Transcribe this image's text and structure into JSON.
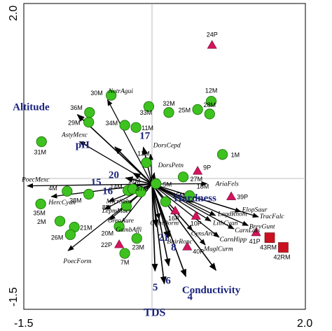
{
  "chart_data": {
    "type": "scatter",
    "title": "",
    "xlabel": "",
    "ylabel": "",
    "xlim": [
      -1.5,
      2.0
    ],
    "ylim": [
      -1.5,
      2.0
    ],
    "x_ticks": [
      "-1.5",
      "2.0"
    ],
    "y_ticks": [
      "2.0",
      "-1.5"
    ],
    "grid": false,
    "reference_lines": [
      0,
      0
    ],
    "marker_colors": {
      "M": "#3ec21f",
      "P": "#d6135e",
      "RM": "#cc1020"
    },
    "sites": [
      {
        "label": "1M",
        "x": 0.88,
        "y": 0.32,
        "marker": "circle"
      },
      {
        "label": "2M",
        "x": -1.15,
        "y": -0.57,
        "marker": "circle"
      },
      {
        "label": "4M",
        "x": -1.06,
        "y": -0.17,
        "marker": "circle"
      },
      {
        "label": "5M",
        "x": 0.05,
        "y": -0.07,
        "marker": "circle"
      },
      {
        "label": "7M",
        "x": -0.34,
        "y": -1.0,
        "marker": "circle"
      },
      {
        "label": "8M",
        "x": -0.32,
        "y": -0.37,
        "marker": "circle"
      },
      {
        "label": "9P",
        "x": 0.57,
        "y": 0.1,
        "marker": "triangle"
      },
      {
        "label": "10P",
        "x": 0.55,
        "y": -0.5,
        "marker": "triangle"
      },
      {
        "label": "11M",
        "x": -0.2,
        "y": 0.68,
        "marker": "circle"
      },
      {
        "label": "12M",
        "x": 0.74,
        "y": 1.03,
        "marker": "circle"
      },
      {
        "label": "13M",
        "x": -0.07,
        "y": 0.21,
        "marker": "circle"
      },
      {
        "label": "14M",
        "x": -0.3,
        "y": -0.16,
        "marker": "circle"
      },
      {
        "label": "15M",
        "x": 0.17,
        "y": -0.31,
        "marker": "circle"
      },
      {
        "label": "16P",
        "x": 0.29,
        "y": -0.43,
        "marker": "triangle"
      },
      {
        "label": "17M",
        "x": -0.24,
        "y": -0.14,
        "marker": "circle"
      },
      {
        "label": "18M",
        "x": 0.47,
        "y": -0.23,
        "marker": "circle"
      },
      {
        "label": "20M",
        "x": -0.41,
        "y": -0.64,
        "marker": "circle"
      },
      {
        "label": "21M",
        "x": -0.97,
        "y": -0.65,
        "marker": "circle"
      },
      {
        "label": "22P",
        "x": -0.41,
        "y": -0.88,
        "marker": "triangle"
      },
      {
        "label": "23M",
        "x": -0.19,
        "y": -0.8,
        "marker": "circle"
      },
      {
        "label": "24P",
        "x": 0.75,
        "y": 1.78,
        "marker": "triangle"
      },
      {
        "label": "25M",
        "x": 0.57,
        "y": 0.92,
        "marker": "circle"
      },
      {
        "label": "26M",
        "x": -1.02,
        "y": -0.75,
        "marker": "circle"
      },
      {
        "label": "27M",
        "x": 0.39,
        "y": 0.02,
        "marker": "circle"
      },
      {
        "label": "28M",
        "x": 0.72,
        "y": 0.86,
        "marker": "circle"
      },
      {
        "label": "29M",
        "x": -0.79,
        "y": 0.75,
        "marker": "circle"
      },
      {
        "label": "30M",
        "x": -0.51,
        "y": 1.11,
        "marker": "circle"
      },
      {
        "label": "31M",
        "x": -1.38,
        "y": 0.49,
        "marker": "circle"
      },
      {
        "label": "32M",
        "x": 0.21,
        "y": 0.88,
        "marker": "circle"
      },
      {
        "label": "33M",
        "x": -0.04,
        "y": 0.96,
        "marker": "circle"
      },
      {
        "label": "34M",
        "x": -0.34,
        "y": 0.71,
        "marker": "circle"
      },
      {
        "label": "35M",
        "x": -1.39,
        "y": -0.34,
        "marker": "circle"
      },
      {
        "label": "36M",
        "x": -0.78,
        "y": 0.88,
        "marker": "circle"
      },
      {
        "label": "37M",
        "x": -0.14,
        "y": -0.18,
        "marker": "circle"
      },
      {
        "label": "38M",
        "x": -0.79,
        "y": -0.21,
        "marker": "circle"
      },
      {
        "label": "39P",
        "x": 0.99,
        "y": -0.24,
        "marker": "triangle"
      },
      {
        "label": "40P",
        "x": 0.44,
        "y": -0.91,
        "marker": "triangle"
      },
      {
        "label": "41P",
        "x": 1.3,
        "y": -0.72,
        "marker": "triangle"
      },
      {
        "label": "42RM",
        "x": 1.64,
        "y": -0.92,
        "marker": "square"
      },
      {
        "label": "43RM",
        "x": 1.47,
        "y": -0.79,
        "marker": "square"
      }
    ],
    "species": [
      {
        "label": "NotrAgui",
        "x": -0.58,
        "y": 1.1
      },
      {
        "label": "AstyMexc",
        "x": -0.95,
        "y": 0.52
      },
      {
        "label": "DorsCepd",
        "x": -0.02,
        "y": 0.38
      },
      {
        "label": "DorsPetn",
        "x": 0.04,
        "y": 0.13
      },
      {
        "label": "AriaFels",
        "x": 0.74,
        "y": -0.07
      },
      {
        "label": "PoecMexc",
        "x": -1.61,
        "y": -0.1
      },
      {
        "label": "HercCyan",
        "x": -1.31,
        "y": -0.25
      },
      {
        "label": "MicrSalm",
        "x": -0.59,
        "y": -0.33
      },
      {
        "label": "LepmMacr",
        "x": -0.64,
        "y": -0.44
      },
      {
        "label": "OreoAure",
        "x": -0.57,
        "y": -0.59
      },
      {
        "label": "GambAffi",
        "x": -0.47,
        "y": -0.71
      },
      {
        "label": "PoecForm",
        "x": -1.09,
        "y": -1.0
      },
      {
        "label": "ElopSaur",
        "x": 1.16,
        "y": -0.46
      },
      {
        "label": "TracFalc",
        "x": 1.38,
        "y": -0.53
      },
      {
        "label": "BrevGunt",
        "x": 1.25,
        "y": -0.65
      },
      {
        "label": "LagdRhom",
        "x": 0.84,
        "y": -0.52
      },
      {
        "label": "LithCyan",
        "x": 0.78,
        "y": -0.6
      },
      {
        "label": "CarnLats",
        "x": 1.07,
        "y": -0.7
      },
      {
        "label": "CarnHipp",
        "x": 0.88,
        "y": -0.82
      },
      {
        "label": "CobiDorm",
        "x": 0.1,
        "y": -0.6
      },
      {
        "label": "CynsAren",
        "x": 0.54,
        "y": -0.74
      },
      {
        "label": "BairRonc",
        "x": 0.24,
        "y": -0.83
      },
      {
        "label": "MuglCurm",
        "x": 0.7,
        "y": -0.93
      }
    ],
    "env_vectors": [
      {
        "label": "Altitude",
        "x": -0.97,
        "y": 0.89
      },
      {
        "label": "pH",
        "x": -0.5,
        "y": 0.46
      },
      {
        "label": "17",
        "x": -0.12,
        "y": 0.47
      },
      {
        "label": "20",
        "x": -0.28,
        "y": 0.1
      },
      {
        "label": "15",
        "x": -0.38,
        "y": 0.02
      },
      {
        "label": "16",
        "x": -0.34,
        "y": -0.1
      },
      {
        "label": "Hardness",
        "x": 0.57,
        "y": -0.34
      },
      {
        "label": "21",
        "x": 0.06,
        "y": -0.7
      },
      {
        "label": "8",
        "x": 0.22,
        "y": -0.85
      },
      {
        "label": "6",
        "x": 0.22,
        "y": -1.22
      },
      {
        "label": "5",
        "x": 0.04,
        "y": -1.29
      },
      {
        "label": "4",
        "x": 0.44,
        "y": -1.36
      },
      {
        "label": "Conductivity",
        "x": 0.83,
        "y": -1.27
      },
      {
        "label": "TDS",
        "x": 0.16,
        "y": -1.46
      }
    ]
  }
}
